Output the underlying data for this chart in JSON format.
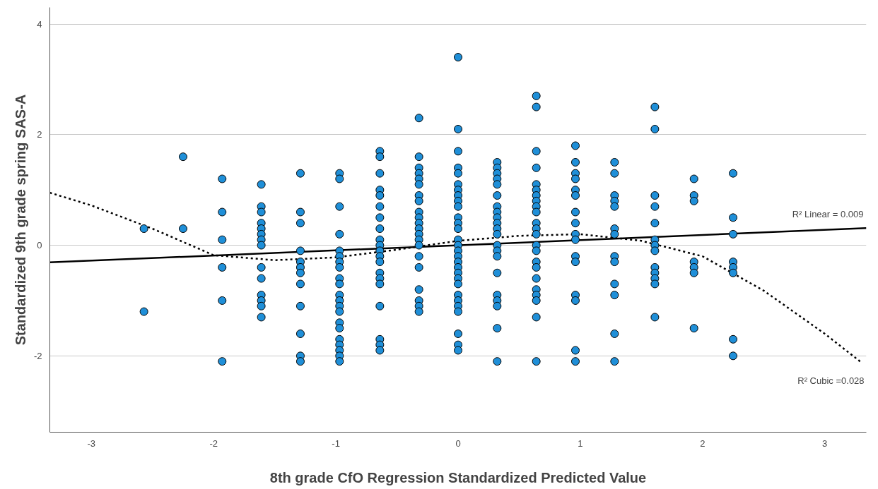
{
  "chart_data": {
    "type": "scatter",
    "xlabel": "8th grade CfO Regression Standardized Predicted Value",
    "ylabel": "Standardized 9th grade spring SAS-A",
    "xlim": [
      -3.34,
      3.34
    ],
    "ylim": [
      -3.38,
      4.3
    ],
    "xticks": [
      -3,
      -2,
      -1,
      0,
      1,
      2,
      3
    ],
    "yticks": [
      -2,
      0,
      2,
      4
    ],
    "grid": "y",
    "annotations": [
      {
        "text": "R² Linear = 0.009",
        "x": 3.34,
        "y": 0.31
      },
      {
        "text": "R² Cubic =0.028",
        "x": 3.3,
        "y": -2.12
      }
    ],
    "series": [
      {
        "color": "#1f8fd8",
        "marker": "circle",
        "x": [
          -2.57,
          -2.57,
          -2.25,
          -2.25,
          -1.93,
          -1.93,
          -1.93,
          -1.93,
          -1.93,
          -1.93,
          -1.61,
          -1.61,
          -1.61,
          -1.61,
          -1.61,
          -1.61,
          -1.61,
          -1.61,
          -1.61,
          -1.61,
          -1.61,
          -1.61,
          -1.61,
          -1.61,
          -1.29,
          -1.29,
          -1.29,
          -1.29,
          -1.29,
          -1.29,
          -1.29,
          -1.29,
          -1.29,
          -1.29,
          -1.29,
          -1.29,
          -0.97,
          -0.97,
          -0.97,
          -0.97,
          -0.97,
          -0.97,
          -0.97,
          -0.97,
          -0.97,
          -0.97,
          -0.97,
          -0.97,
          -0.97,
          -0.97,
          -0.97,
          -0.97,
          -0.97,
          -0.97,
          -0.97,
          -0.97,
          -0.97,
          -0.64,
          -0.64,
          -0.64,
          -0.64,
          -0.64,
          -0.64,
          -0.64,
          -0.64,
          -0.64,
          -0.64,
          -0.64,
          -0.64,
          -0.64,
          -0.64,
          -0.64,
          -0.64,
          -0.64,
          -0.64,
          -0.64,
          -0.64,
          -0.32,
          -0.32,
          -0.32,
          -0.32,
          -0.32,
          -0.32,
          -0.32,
          -0.32,
          -0.32,
          -0.32,
          -0.32,
          -0.32,
          -0.32,
          -0.32,
          -0.32,
          -0.32,
          -0.32,
          -0.32,
          -0.32,
          -0.32,
          -0.32,
          0,
          0,
          0,
          0,
          0,
          0,
          0,
          0,
          0,
          0,
          0,
          0,
          0,
          0,
          0,
          0,
          0,
          0,
          0,
          0,
          0,
          0,
          0,
          0,
          0,
          0,
          0,
          0,
          0,
          0.32,
          0.32,
          0.32,
          0.32,
          0.32,
          0.32,
          0.32,
          0.32,
          0.32,
          0.32,
          0.32,
          0.32,
          0.32,
          0.32,
          0.32,
          0.32,
          0.32,
          0.32,
          0.32,
          0.32,
          0.32,
          0.64,
          0.64,
          0.64,
          0.64,
          0.64,
          0.64,
          0.64,
          0.64,
          0.64,
          0.64,
          0.64,
          0.64,
          0.64,
          0.64,
          0.64,
          0.64,
          0.64,
          0.64,
          0.64,
          0.64,
          0.64,
          0.64,
          0.64,
          0.96,
          0.96,
          0.96,
          0.96,
          0.96,
          0.96,
          0.96,
          0.96,
          0.96,
          0.96,
          0.96,
          0.96,
          0.96,
          0.96,
          0.96,
          0.96,
          1.28,
          1.28,
          1.28,
          1.28,
          1.28,
          1.28,
          1.28,
          1.28,
          1.28,
          1.28,
          1.28,
          1.28,
          1.28,
          1.61,
          1.61,
          1.61,
          1.61,
          1.61,
          1.61,
          1.61,
          1.61,
          1.61,
          1.61,
          1.61,
          1.61,
          1.61,
          1.93,
          1.93,
          1.93,
          1.93,
          1.93,
          1.93,
          1.93,
          2.25,
          2.25,
          2.25,
          2.25,
          2.25,
          2.25,
          2.25,
          2.25
        ],
        "values": [
          0.3,
          -1.2,
          1.6,
          0.3,
          1.2,
          0.6,
          0.1,
          -0.4,
          -1.0,
          -2.1,
          1.1,
          0.7,
          0.6,
          0.4,
          0.3,
          0.2,
          0.1,
          0,
          -0.4,
          -0.6,
          -0.9,
          -1.0,
          -1.1,
          -1.3,
          1.3,
          0.6,
          0.4,
          -0.1,
          -0.3,
          -0.4,
          -0.5,
          -0.7,
          -1.1,
          -1.6,
          -2.0,
          -2.1,
          1.3,
          1.2,
          0.7,
          0.2,
          -0.1,
          -0.2,
          -0.3,
          -0.4,
          -0.6,
          -0.7,
          -0.9,
          -1.0,
          -1.1,
          -1.2,
          -1.4,
          -1.5,
          -1.7,
          -1.8,
          -1.9,
          -2.0,
          -2.1,
          1.7,
          1.6,
          1.3,
          1.0,
          0.9,
          0.7,
          0.5,
          0.3,
          0.1,
          0,
          -0.1,
          -0.2,
          -0.3,
          -0.5,
          -0.6,
          -0.7,
          -1.1,
          -1.7,
          -1.8,
          -1.9,
          2.3,
          1.6,
          1.4,
          1.3,
          1.2,
          1.1,
          0.9,
          0.8,
          0.6,
          0.5,
          0.4,
          0.3,
          0.2,
          0.1,
          0,
          -0.2,
          -0.4,
          -0.8,
          -1.0,
          -1.1,
          -1.2,
          3.4,
          2.1,
          1.7,
          1.4,
          1.3,
          1.1,
          1.0,
          0.9,
          0.8,
          0.7,
          0.5,
          0.4,
          0.3,
          0.1,
          0,
          -0.1,
          -0.2,
          -0.3,
          -0.4,
          -0.5,
          -0.6,
          -0.7,
          -0.9,
          -1.0,
          -1.1,
          -1.2,
          -1.6,
          -1.8,
          -1.9,
          1.5,
          1.4,
          1.3,
          1.2,
          1.1,
          0.9,
          0.7,
          0.6,
          0.5,
          0.4,
          0.3,
          0.2,
          0,
          -0.1,
          -0.2,
          -0.5,
          -0.9,
          -1.0,
          -1.1,
          -1.5,
          -2.1,
          2.7,
          2.5,
          1.7,
          1.4,
          1.1,
          1.0,
          0.9,
          0.8,
          0.7,
          0.6,
          0.4,
          0.3,
          0.2,
          0,
          -0.1,
          -0.3,
          -0.4,
          -0.6,
          -0.8,
          -0.9,
          -1.0,
          -1.3,
          -2.1,
          1.8,
          1.5,
          1.3,
          1.2,
          1.0,
          0.9,
          0.6,
          0.4,
          0.2,
          0.1,
          -0.2,
          -0.3,
          -0.9,
          -1.0,
          -1.9,
          -2.1,
          1.5,
          1.3,
          0.9,
          0.8,
          0.7,
          0.3,
          0.2,
          -0.2,
          -0.3,
          -0.7,
          -0.9,
          -1.6,
          -2.1,
          2.5,
          2.1,
          0.9,
          0.7,
          0.4,
          0.1,
          0,
          -0.1,
          -0.4,
          -0.5,
          -0.6,
          -0.7,
          -1.3,
          1.2,
          0.9,
          0.8,
          -0.3,
          -0.4,
          -0.5,
          -1.5,
          1.3,
          0.5,
          0.2,
          -0.3,
          -0.4,
          -0.5,
          -1.7,
          -2.0
        ]
      },
      {
        "type": "line",
        "color": "#000000",
        "line_style": "solid",
        "x": [
          -3.34,
          3.34
        ],
        "values": [
          -0.31,
          0.31
        ]
      },
      {
        "type": "line",
        "color": "#000000",
        "line_style": "dotted",
        "x": [
          -3.34,
          -3,
          -2.5,
          -2,
          -1.5,
          -1,
          -0.5,
          0,
          0.5,
          1,
          1.5,
          2,
          2.5,
          3,
          3.3
        ],
        "values": [
          0.95,
          0.72,
          0.3,
          -0.18,
          -0.27,
          -0.22,
          -0.08,
          0.08,
          0.17,
          0.2,
          0.08,
          -0.2,
          -0.82,
          -1.6,
          -2.12
        ]
      }
    ]
  }
}
